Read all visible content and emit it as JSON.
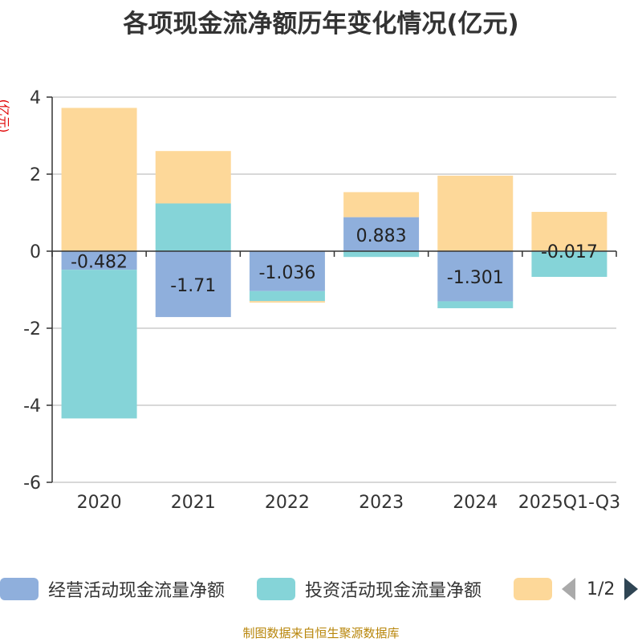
{
  "chart_data": {
    "type": "bar",
    "stacked": true,
    "title": "各项现金流净额历年变化情况(亿元)",
    "ylabel": "(亿元)",
    "ylim": [
      -6,
      4
    ],
    "yticks": [
      4,
      2,
      0,
      -2,
      -4,
      -6
    ],
    "categories": [
      "2020",
      "2021",
      "2022",
      "2023",
      "2024",
      "2025Q1-Q3"
    ],
    "series": [
      {
        "name": "经营活动现金流量净额",
        "color": "#8fafdc",
        "values": [
          -0.482,
          -1.71,
          -1.036,
          0.883,
          -1.301,
          -0.017
        ],
        "labels": [
          "-0.482",
          "-1.71",
          "-1.036",
          "0.883",
          "-1.301",
          "-0.017"
        ]
      },
      {
        "name": "投资活动现金流量净额",
        "color": "#85d4d8",
        "values": [
          -3.86,
          1.24,
          -0.26,
          -0.15,
          -0.18,
          -0.65
        ]
      },
      {
        "name": "",
        "color": "#fdd899",
        "values": [
          3.72,
          1.36,
          -0.04,
          0.65,
          1.96,
          1.02
        ]
      }
    ]
  },
  "legend": {
    "items": [
      {
        "label": "经营活动现金流量净额",
        "color": "#8fafdc"
      },
      {
        "label": "投资活动现金流量净额",
        "color": "#85d4d8"
      },
      {
        "label": "",
        "color": "#fdd899"
      }
    ],
    "page": "1/2"
  },
  "source": "制图数据来自恒生聚源数据库"
}
